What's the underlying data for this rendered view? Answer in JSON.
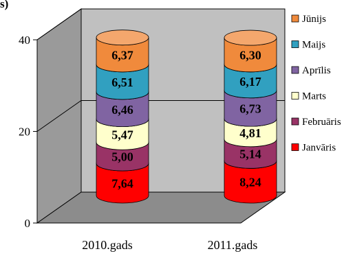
{
  "chart_data": {
    "type": "bar",
    "stacked": true,
    "three_d": true,
    "title": "",
    "partial_top_left_text": "s)",
    "categories": [
      "2010.gads",
      "2011.gads"
    ],
    "series": [
      {
        "name": "Janvāris",
        "color": "#FF0000",
        "values": [
          7.64,
          8.24
        ],
        "labels": [
          "7,64",
          "8,24"
        ]
      },
      {
        "name": "Februāris",
        "color": "#993366",
        "values": [
          5.0,
          5.14
        ],
        "labels": [
          "5,00",
          "5,14"
        ]
      },
      {
        "name": "Marts",
        "color": "#FFFFCC",
        "values": [
          5.47,
          4.81
        ],
        "labels": [
          "5,47",
          "4,81"
        ]
      },
      {
        "name": "Aprīlis",
        "color": "#8064A2",
        "values": [
          6.46,
          6.73
        ],
        "labels": [
          "6,46",
          "6,73"
        ]
      },
      {
        "name": "Maijs",
        "color": "#31A0C0",
        "values": [
          6.51,
          6.17
        ],
        "labels": [
          "6,51",
          "6,17"
        ]
      },
      {
        "name": "Jūnijs",
        "color": "#F08A3C",
        "values": [
          6.37,
          6.3
        ],
        "labels": [
          "6,37",
          "6,30"
        ]
      }
    ],
    "yticks": [
      "0",
      "20",
      "40"
    ],
    "ylim": [
      0,
      40
    ],
    "legend_position": "right",
    "gridlines": true,
    "wall_color": "#C0C0C0"
  }
}
